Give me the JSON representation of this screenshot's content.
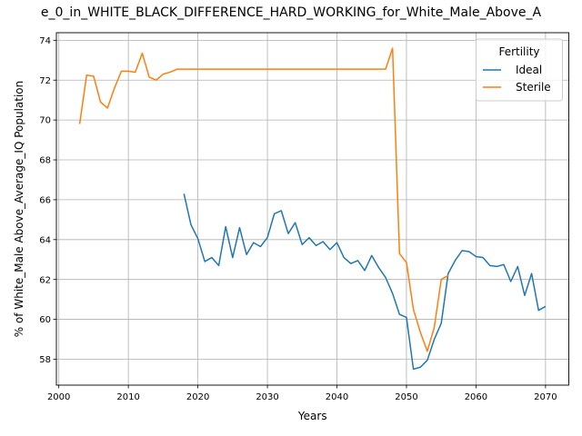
{
  "chart_data": {
    "type": "line",
    "title": "e_0_in_WHITE_BLACK_DIFFERENCE_HARD_WORKING_for_White_Male_Above_A",
    "xlabel": "Years",
    "ylabel": "% of White_Male Above_Average_IQ Population",
    "xlim": [
      1999.65,
      2073.35
    ],
    "ylim": [
      56.7,
      74.38
    ],
    "xticks": [
      2000,
      2010,
      2020,
      2030,
      2040,
      2050,
      2060,
      2070
    ],
    "yticks": [
      58,
      60,
      62,
      64,
      66,
      68,
      70,
      72,
      74
    ],
    "grid": true,
    "legend": {
      "title": "Fertility",
      "placement": "top-right"
    },
    "series": [
      {
        "name": "Ideal",
        "color": "#1f77b4",
        "x": [
          2018,
          2019,
          2020,
          2021,
          2022,
          2023,
          2024,
          2025,
          2026,
          2027,
          2028,
          2029,
          2030,
          2031,
          2032,
          2033,
          2034,
          2035,
          2036,
          2037,
          2038,
          2039,
          2040,
          2041,
          2042,
          2043,
          2044,
          2045,
          2046,
          2047,
          2048,
          2049,
          2050,
          2051,
          2052,
          2053,
          2054,
          2055,
          2056,
          2057,
          2058,
          2059,
          2060,
          2061,
          2062,
          2063,
          2064,
          2065,
          2066,
          2067,
          2068,
          2069,
          2070
        ],
        "y": [
          66.3,
          64.75,
          64.05,
          62.9,
          63.1,
          62.7,
          64.65,
          63.1,
          64.6,
          63.25,
          63.85,
          63.65,
          64.1,
          65.3,
          65.45,
          64.3,
          64.85,
          63.75,
          64.1,
          63.7,
          63.9,
          63.5,
          63.85,
          63.1,
          62.8,
          62.95,
          62.45,
          63.2,
          62.6,
          62.1,
          61.3,
          60.25,
          60.1,
          57.5,
          57.6,
          57.95,
          59.0,
          59.8,
          62.3,
          62.95,
          63.45,
          63.4,
          63.15,
          63.1,
          62.7,
          62.65,
          62.75,
          61.9,
          62.65,
          61.2,
          62.3,
          60.45,
          60.65
        ]
      },
      {
        "name": "Sterile",
        "color": "#ff7f0e",
        "x": [
          2003,
          2004,
          2005,
          2006,
          2007,
          2008,
          2009,
          2010,
          2011,
          2012,
          2013,
          2014,
          2015,
          2016,
          2017,
          2018,
          2019,
          2020,
          2021,
          2022,
          2023,
          2024,
          2025,
          2026,
          2027,
          2028,
          2029,
          2030,
          2031,
          2032,
          2033,
          2034,
          2035,
          2036,
          2037,
          2038,
          2039,
          2040,
          2041,
          2042,
          2043,
          2044,
          2045,
          2046,
          2047,
          2048,
          2049,
          2050,
          2051,
          2052,
          2053,
          2054,
          2055,
          2056
        ],
        "y": [
          69.8,
          72.25,
          72.2,
          70.9,
          70.6,
          71.6,
          72.45,
          72.45,
          72.4,
          73.35,
          72.15,
          72.0,
          72.3,
          72.4,
          72.55,
          72.55,
          72.55,
          72.55,
          72.55,
          72.55,
          72.55,
          72.55,
          72.55,
          72.55,
          72.55,
          72.55,
          72.55,
          72.55,
          72.55,
          72.55,
          72.55,
          72.55,
          72.55,
          72.55,
          72.55,
          72.55,
          72.55,
          72.55,
          72.55,
          72.55,
          72.55,
          72.55,
          72.55,
          72.55,
          72.55,
          73.6,
          63.3,
          62.85,
          60.5,
          59.35,
          58.4,
          59.6,
          62.0,
          62.2
        ]
      }
    ]
  }
}
